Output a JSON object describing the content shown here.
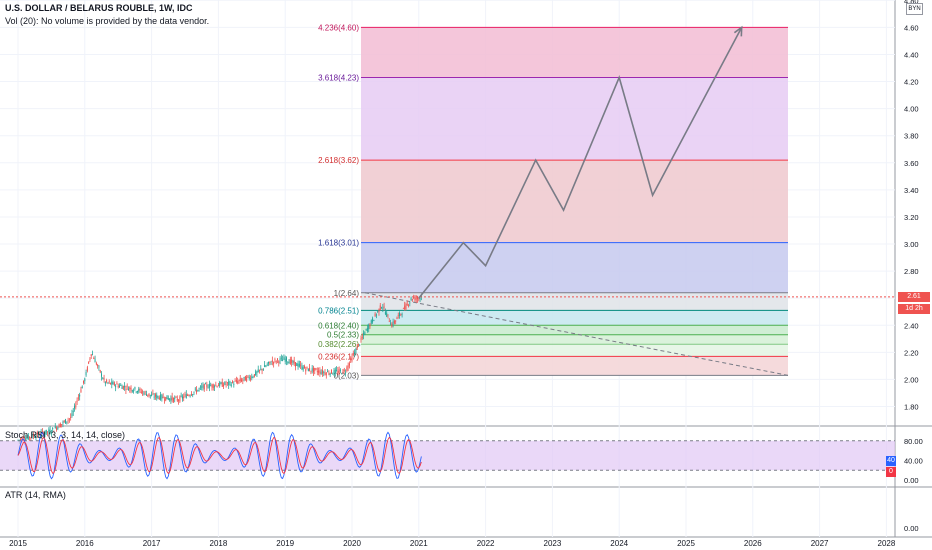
{
  "header": {
    "title": "U.S. DOLLAR / BELARUS ROUBLE, 1W, IDC",
    "volume_note": "Vol (20): No volume is provided by the data vendor.",
    "currency": "BYN"
  },
  "price_axis": {
    "labels": [
      "4.80",
      "4.60",
      "4.40",
      "4.20",
      "4.00",
      "3.80",
      "3.60",
      "3.40",
      "3.20",
      "3.00",
      "2.80",
      "2.60",
      "2.40",
      "2.20",
      "2.00",
      "1.80"
    ],
    "last_price": "2.61",
    "countdown": "1d 2h"
  },
  "fib_levels": [
    {
      "ratio": "4.236",
      "price": "4.60",
      "label": "4.236(4.60)",
      "line": "#e91e63",
      "fill": "#f2bcd3",
      "text": "#c2185b"
    },
    {
      "ratio": "3.618",
      "price": "4.23",
      "label": "3.618(4.23)",
      "line": "#9c27b0",
      "fill": "#e6cbf3",
      "text": "#6a1b9a"
    },
    {
      "ratio": "2.618",
      "price": "3.62",
      "label": "2.618(3.62)",
      "line": "#f23645",
      "fill": "#eec8ce",
      "text": "#d32f2f"
    },
    {
      "ratio": "1.618",
      "price": "3.01",
      "label": "1.618(3.01)",
      "line": "#2962ff",
      "fill": "#c5c9ee",
      "text": "#283593"
    },
    {
      "ratio": "1",
      "price": "2.64",
      "label": "1(2.64)",
      "line": "#787b86",
      "fill": "#dfe3e8",
      "text": "#555555"
    },
    {
      "ratio": "0.786",
      "price": "2.51",
      "label": "0.786(2.51)",
      "line": "#00897b",
      "fill": "#c4e6ef",
      "text": "#00838f"
    },
    {
      "ratio": "0.618",
      "price": "2.40",
      "label": "0.618(2.40)",
      "line": "#4caf50",
      "fill": "#c7ebcd",
      "text": "#2e7d32"
    },
    {
      "ratio": "0.5",
      "price": "2.33",
      "label": "0.5(2.33)",
      "line": "#4caf50",
      "fill": "#d4f0d5",
      "text": "#2e7d32"
    },
    {
      "ratio": "0.382",
      "price": "2.26",
      "label": "0.382(2.26)",
      "line": "#81c784",
      "fill": "#e3f4e3",
      "text": "#558b2f"
    },
    {
      "ratio": "0.236",
      "price": "2.17",
      "label": "0.236(2.17)",
      "line": "#f23645",
      "fill": "#f3d3d6",
      "text": "#d32f2f"
    },
    {
      "ratio": "0",
      "price": "2.03",
      "label": "0(2.03)",
      "line": "#787b86",
      "fill": "#ffffff",
      "text": "#555555"
    }
  ],
  "projection_path": [
    {
      "date": "2021-01",
      "price": 2.6
    },
    {
      "date": "2021-09",
      "price": 3.01
    },
    {
      "date": "2022-01",
      "price": 2.84
    },
    {
      "date": "2022-10",
      "price": 3.62
    },
    {
      "date": "2023-03",
      "price": 3.25
    },
    {
      "date": "2024-01",
      "price": 4.23
    },
    {
      "date": "2024-07",
      "price": 3.36
    },
    {
      "date": "2025-11",
      "price": 4.6
    }
  ],
  "stoch_rsi": {
    "label": "Stoch RSI (3, 3, 14, 14, close)",
    "axis_labels": [
      "80.00",
      "40.00",
      "0.00"
    ],
    "k_value": "40",
    "d_value": "0"
  },
  "atr": {
    "label": "ATR (14, RMA)",
    "axis_labels": [
      "0.00"
    ]
  },
  "time_axis": [
    "2015",
    "2016",
    "2017",
    "2018",
    "2019",
    "2020",
    "2021",
    "2022",
    "2023",
    "2024",
    "2025",
    "2026",
    "2027",
    "2028"
  ],
  "colors": {
    "up": "#26a69a",
    "down": "#ef5350",
    "last_price": "#ef5350",
    "stoch_k": "#2962ff",
    "stoch_d": "#f23645",
    "stoch_band": "#e1c8f5",
    "projection": "#787b86"
  }
}
